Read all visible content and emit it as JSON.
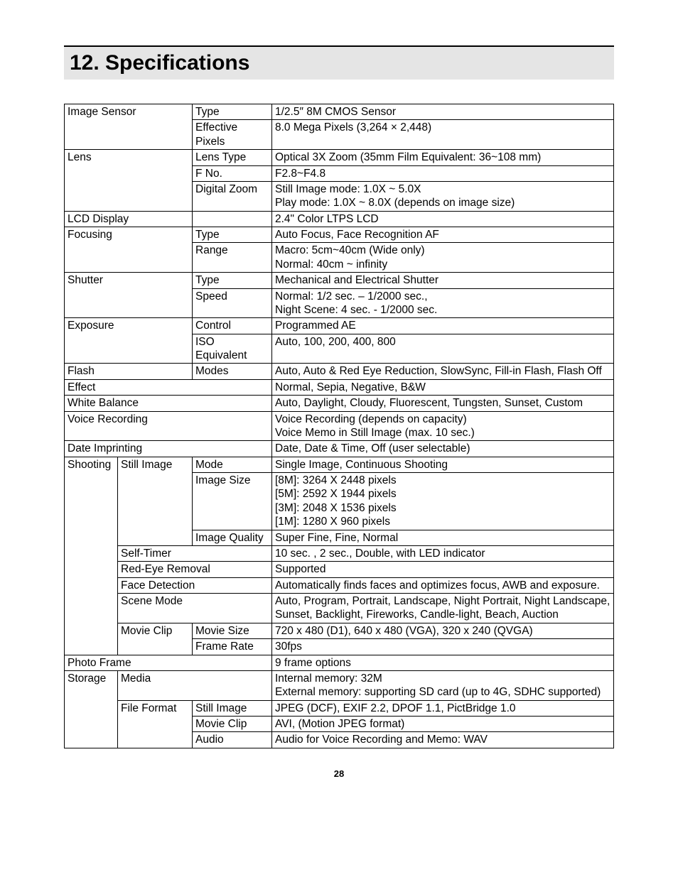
{
  "page": {
    "heading": "12.  Specifications",
    "page_number": "28",
    "colors": {
      "heading_bg": "#e5e5e5",
      "border": "#000000"
    }
  },
  "specs": {
    "image_sensor": {
      "label": "Image Sensor",
      "type_label": "Type",
      "type_val": "1/2.5″ 8M CMOS Sensor",
      "eff_label": "Effective Pixels",
      "eff_val": "8.0 Mega Pixels (3,264 × 2,448)"
    },
    "lens": {
      "label": "Lens",
      "type_label": "Lens Type",
      "type_val": "Optical 3X Zoom (35mm Film Equivalent: 36~108 mm)",
      "fno_label": "F No.",
      "fno_val": "F2.8~F4.8",
      "dz_label": "Digital Zoom",
      "dz_val": "Still Image mode: 1.0X ~ 5.0X\nPlay mode: 1.0X ~ 8.0X (depends on image size)"
    },
    "lcd": {
      "label": "LCD Display",
      "sub": "",
      "val": "2.4\" Color LTPS LCD"
    },
    "focusing": {
      "label": "Focusing",
      "type_label": "Type",
      "type_val": "Auto Focus, Face Recognition AF",
      "range_label": "Range",
      "range_val": "Macro: 5cm~40cm (Wide only)\nNormal: 40cm ~ infinity"
    },
    "shutter": {
      "label": "Shutter",
      "type_label": "Type",
      "type_val": "Mechanical and Electrical Shutter",
      "speed_label": "Speed",
      "speed_val": "Normal: 1/2 sec. – 1/2000 sec.,\nNight Scene: 4 sec. - 1/2000 sec."
    },
    "exposure": {
      "label": "Exposure",
      "ctrl_label": "Control",
      "ctrl_val": "Programmed AE",
      "iso_label": "ISO Equivalent",
      "iso_val": "Auto, 100, 200, 400, 800"
    },
    "flash": {
      "label": "Flash",
      "modes_label": "Modes",
      "modes_val": "Auto, Auto & Red  Eye Reduction, SlowSync, Fill-in Flash, Flash Off"
    },
    "effect": {
      "label": "Effect",
      "val": "Normal, Sepia, Negative, B&W"
    },
    "wb": {
      "label": "White Balance",
      "val": "Auto, Daylight, Cloudy, Fluorescent, Tungsten, Sunset, Custom"
    },
    "voice": {
      "label": "Voice Recording",
      "val": "Voice Recording (depends on capacity)\nVoice Memo in Still Image (max. 10 sec.)"
    },
    "date": {
      "label": "Date Imprinting",
      "val": "Date, Date & Time, Off (user selectable)"
    },
    "shooting": {
      "label": "Shooting",
      "still_label": "Still Image",
      "mode_label": "Mode",
      "mode_val": "Single Image, Continuous Shooting",
      "size_label": "Image Size",
      "size_val": "[8M]: 3264 X 2448 pixels\n[5M]: 2592 X 1944 pixels\n[3M]: 2048 X 1536 pixels\n[1M]: 1280 X 960 pixels",
      "quality_label": "Image Quality",
      "quality_val": "Super Fine, Fine, Normal",
      "selftimer_label": "Self-Timer",
      "selftimer_val": "10 sec. , 2 sec., Double, with LED indicator",
      "redeye_label": "Red-Eye Removal",
      "redeye_val": "Supported",
      "face_label": "Face Detection",
      "face_val": "Automatically finds faces and optimizes focus, AWB and exposure.",
      "scene_label": "Scene Mode",
      "scene_val": "Auto, Program, Portrait, Landscape, Night Portrait, Night Landscape, Sunset, Backlight, Fireworks, Candle-light, Beach, Auction",
      "movie_label": "Movie Clip",
      "moviesize_label": "Movie Size",
      "moviesize_val": "720 x 480 (D1), 640 x 480 (VGA), 320 x 240 (QVGA)",
      "framerate_label": "Frame Rate",
      "framerate_val": "30fps"
    },
    "photoframe": {
      "label": "Photo Frame",
      "val": "9 frame options"
    },
    "storage": {
      "label": "Storage",
      "media_label": "Media",
      "media_val": "Internal memory: 32M\nExternal memory: supporting SD card (up to 4G, SDHC supported)",
      "ff_label": "File Format",
      "still_label": "Still Image",
      "still_val": "JPEG (DCF), EXIF 2.2, DPOF 1.1, PictBridge 1.0",
      "movie_label": "Movie Clip",
      "movie_val": "AVI, (Motion JPEG format)",
      "audio_label": "Audio",
      "audio_val": "Audio for Voice Recording and Memo: WAV"
    }
  }
}
